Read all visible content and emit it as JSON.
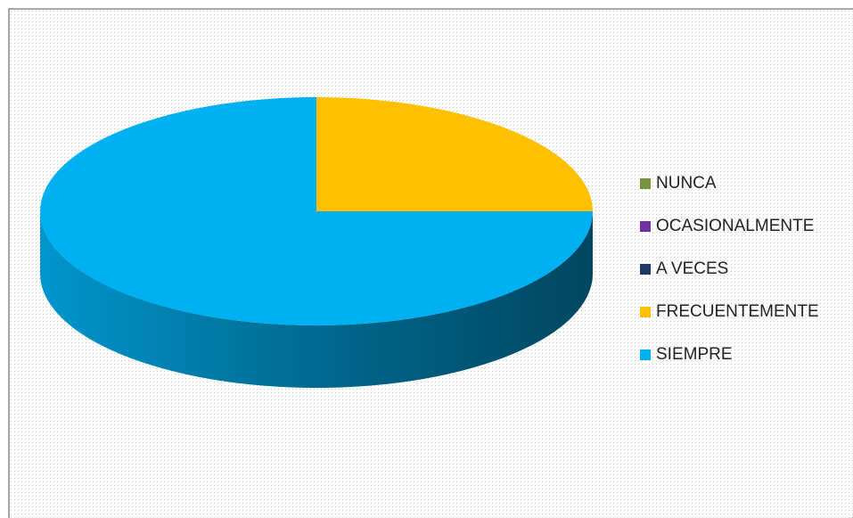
{
  "chart_data": {
    "type": "pie3d",
    "categories": [
      "NUNCA",
      "OCASIONALMENTE",
      "A VECES",
      "FRECUENTEMENTE",
      "SIEMPRE"
    ],
    "values": [
      0,
      0,
      0,
      25,
      75
    ],
    "colors": [
      "#77933c",
      "#7030a0",
      "#1f3864",
      "#ffc000",
      "#00b0f0"
    ],
    "legend": "right"
  }
}
